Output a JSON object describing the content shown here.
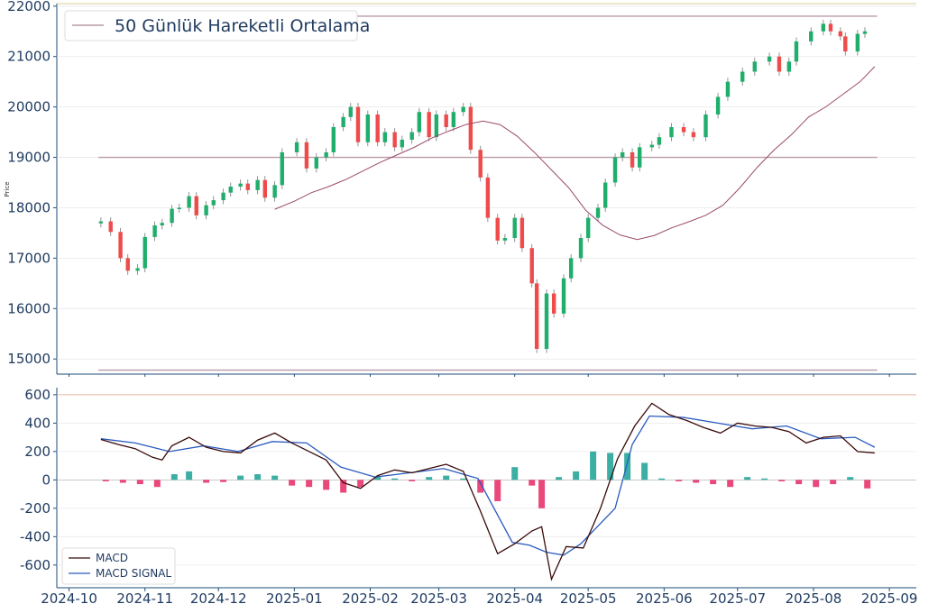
{
  "chart_data": [
    {
      "type": "candlestick",
      "ylabel": "Price",
      "ylim": [
        14700,
        22050
      ],
      "yticks": [
        15000,
        16000,
        17000,
        18000,
        19000,
        20000,
        21000,
        22000
      ],
      "legend": {
        "placement": "top-left",
        "entries": [
          "50 Günlük Hareketli Ortalama"
        ]
      },
      "horizontal_lines": [
        21800,
        19000,
        14780
      ],
      "up_color": "#26a69a",
      "candle_up_color": "#1fae6b",
      "candle_down_color": "#ef4b4b",
      "ma_color": "#9a4a6a",
      "ohlc_points": [
        [
          "2024-10-14",
          17730
        ],
        [
          "2024-10-18",
          17520
        ],
        [
          "2024-10-22",
          17000
        ],
        [
          "2024-10-25",
          16750
        ],
        [
          "2024-10-29",
          16800
        ],
        [
          "2024-11-01",
          17420
        ],
        [
          "2024-11-05",
          17650
        ],
        [
          "2024-11-08",
          17700
        ],
        [
          "2024-11-12",
          17980
        ],
        [
          "2024-11-15",
          18000
        ],
        [
          "2024-11-19",
          18230
        ],
        [
          "2024-11-22",
          17850
        ],
        [
          "2024-11-26",
          18050
        ],
        [
          "2024-11-29",
          18150
        ],
        [
          "2024-12-03",
          18300
        ],
        [
          "2024-12-06",
          18420
        ],
        [
          "2024-12-10",
          18480
        ],
        [
          "2024-12-13",
          18350
        ],
        [
          "2024-12-17",
          18550
        ],
        [
          "2024-12-20",
          18200
        ],
        [
          "2024-12-24",
          18450
        ],
        [
          "2024-12-27",
          19100
        ],
        [
          "2025-01-02",
          19300
        ],
        [
          "2025-01-06",
          18780
        ],
        [
          "2025-01-10",
          19000
        ],
        [
          "2025-01-14",
          19100
        ],
        [
          "2025-01-17",
          19600
        ],
        [
          "2025-01-21",
          19800
        ],
        [
          "2025-01-24",
          20000
        ],
        [
          "2025-01-27",
          19300
        ],
        [
          "2025-01-31",
          19850
        ],
        [
          "2025-02-04",
          19300
        ],
        [
          "2025-02-07",
          19500
        ],
        [
          "2025-02-11",
          19200
        ],
        [
          "2025-02-14",
          19350
        ],
        [
          "2025-02-18",
          19500
        ],
        [
          "2025-02-21",
          19900
        ],
        [
          "2025-02-25",
          19400
        ],
        [
          "2025-02-28",
          19850
        ],
        [
          "2025-03-04",
          19600
        ],
        [
          "2025-03-07",
          19900
        ],
        [
          "2025-03-11",
          20000
        ],
        [
          "2025-03-14",
          19150
        ],
        [
          "2025-03-18",
          18600
        ],
        [
          "2025-03-21",
          17800
        ],
        [
          "2025-03-25",
          17350
        ],
        [
          "2025-03-28",
          17400
        ],
        [
          "2025-04-01",
          17800
        ],
        [
          "2025-04-04",
          17200
        ],
        [
          "2025-04-08",
          16500
        ],
        [
          "2025-04-10",
          15200
        ],
        [
          "2025-04-14",
          16300
        ],
        [
          "2025-04-17",
          15900
        ],
        [
          "2025-04-21",
          16600
        ],
        [
          "2025-04-24",
          17000
        ],
        [
          "2025-04-28",
          17400
        ],
        [
          "2025-05-01",
          17800
        ],
        [
          "2025-05-05",
          18000
        ],
        [
          "2025-05-08",
          18500
        ],
        [
          "2025-05-12",
          19000
        ],
        [
          "2025-05-15",
          19100
        ],
        [
          "2025-05-19",
          18800
        ],
        [
          "2025-05-22",
          19200
        ],
        [
          "2025-05-27",
          19250
        ],
        [
          "2025-05-30",
          19400
        ],
        [
          "2025-06-04",
          19600
        ],
        [
          "2025-06-09",
          19500
        ],
        [
          "2025-06-13",
          19400
        ],
        [
          "2025-06-18",
          19850
        ],
        [
          "2025-06-23",
          20200
        ],
        [
          "2025-06-27",
          20500
        ],
        [
          "2025-07-03",
          20700
        ],
        [
          "2025-07-08",
          20900
        ],
        [
          "2025-07-14",
          21000
        ],
        [
          "2025-07-18",
          20700
        ],
        [
          "2025-07-22",
          20900
        ],
        [
          "2025-07-25",
          21300
        ],
        [
          "2025-07-31",
          21500
        ],
        [
          "2025-08-05",
          21650
        ],
        [
          "2025-08-08",
          21500
        ],
        [
          "2025-08-12",
          21400
        ],
        [
          "2025-08-14",
          21100
        ],
        [
          "2025-08-19",
          21450
        ],
        [
          "2025-08-22",
          21500
        ]
      ],
      "ma50": [
        [
          "2024-12-24",
          17970
        ],
        [
          "2025-01-01",
          18130
        ],
        [
          "2025-01-08",
          18300
        ],
        [
          "2025-01-15",
          18420
        ],
        [
          "2025-01-22",
          18560
        ],
        [
          "2025-01-29",
          18730
        ],
        [
          "2025-02-05",
          18900
        ],
        [
          "2025-02-12",
          19050
        ],
        [
          "2025-02-19",
          19200
        ],
        [
          "2025-02-26",
          19380
        ],
        [
          "2025-03-05",
          19520
        ],
        [
          "2025-03-12",
          19650
        ],
        [
          "2025-03-19",
          19720
        ],
        [
          "2025-03-26",
          19650
        ],
        [
          "2025-04-02",
          19420
        ],
        [
          "2025-04-09",
          19100
        ],
        [
          "2025-04-16",
          18750
        ],
        [
          "2025-04-23",
          18400
        ],
        [
          "2025-04-30",
          17950
        ],
        [
          "2025-05-07",
          17650
        ],
        [
          "2025-05-14",
          17460
        ],
        [
          "2025-05-21",
          17370
        ],
        [
          "2025-05-28",
          17450
        ],
        [
          "2025-06-04",
          17600
        ],
        [
          "2025-06-11",
          17720
        ],
        [
          "2025-06-18",
          17850
        ],
        [
          "2025-06-25",
          18050
        ],
        [
          "2025-07-02",
          18400
        ],
        [
          "2025-07-09",
          18800
        ],
        [
          "2025-07-16",
          19150
        ],
        [
          "2025-07-23",
          19450
        ],
        [
          "2025-07-30",
          19800
        ],
        [
          "2025-08-06",
          20000
        ],
        [
          "2025-08-13",
          20250
        ],
        [
          "2025-08-20",
          20500
        ],
        [
          "2025-08-26",
          20800
        ]
      ]
    },
    {
      "type": "line+bar",
      "ylim": [
        -760,
        650
      ],
      "yticks": [
        -600,
        -400,
        -200,
        0,
        200,
        400,
        600
      ],
      "top_reference_line": 600,
      "xticks": [
        "2024-10",
        "2024-11",
        "2024-12",
        "2025-01",
        "2025-02",
        "2025-03",
        "2025-04",
        "2025-05",
        "2025-06",
        "2025-07",
        "2025-08",
        "2025-09"
      ],
      "legend": {
        "placement": "bottom-left"
      },
      "series": [
        {
          "name": "MACD",
          "color": "#3a0a0a",
          "points": [
            [
              "2024-10-14",
              285
            ],
            [
              "2024-10-21",
              250
            ],
            [
              "2024-10-28",
              220
            ],
            [
              "2024-11-04",
              160
            ],
            [
              "2024-11-08",
              140
            ],
            [
              "2024-11-12",
              240
            ],
            [
              "2024-11-19",
              300
            ],
            [
              "2024-11-26",
              230
            ],
            [
              "2024-12-03",
              200
            ],
            [
              "2024-12-10",
              190
            ],
            [
              "2024-12-17",
              280
            ],
            [
              "2024-12-24",
              330
            ],
            [
              "2024-12-31",
              260
            ],
            [
              "2025-01-07",
              200
            ],
            [
              "2025-01-14",
              140
            ],
            [
              "2025-01-21",
              -20
            ],
            [
              "2025-01-28",
              -60
            ],
            [
              "2025-02-04",
              30
            ],
            [
              "2025-02-11",
              70
            ],
            [
              "2025-02-18",
              50
            ],
            [
              "2025-02-25",
              80
            ],
            [
              "2025-03-04",
              110
            ],
            [
              "2025-03-11",
              60
            ],
            [
              "2025-03-18",
              -220
            ],
            [
              "2025-03-25",
              -520
            ],
            [
              "2025-04-01",
              -450
            ],
            [
              "2025-04-08",
              -360
            ],
            [
              "2025-04-12",
              -330
            ],
            [
              "2025-04-16",
              -700
            ],
            [
              "2025-04-22",
              -470
            ],
            [
              "2025-04-29",
              -480
            ],
            [
              "2025-05-06",
              -200
            ],
            [
              "2025-05-13",
              150
            ],
            [
              "2025-05-20",
              380
            ],
            [
              "2025-05-27",
              540
            ],
            [
              "2025-06-03",
              460
            ],
            [
              "2025-06-10",
              420
            ],
            [
              "2025-06-17",
              370
            ],
            [
              "2025-06-24",
              330
            ],
            [
              "2025-07-01",
              400
            ],
            [
              "2025-07-08",
              380
            ],
            [
              "2025-07-15",
              370
            ],
            [
              "2025-07-22",
              340
            ],
            [
              "2025-07-29",
              260
            ],
            [
              "2025-08-05",
              300
            ],
            [
              "2025-08-12",
              310
            ],
            [
              "2025-08-19",
              200
            ],
            [
              "2025-08-26",
              190
            ]
          ]
        },
        {
          "name": "MACD SIGNAL",
          "color": "#2a5bbf",
          "points": [
            [
              "2024-10-14",
              290
            ],
            [
              "2024-10-28",
              260
            ],
            [
              "2024-11-11",
              200
            ],
            [
              "2024-11-25",
              240
            ],
            [
              "2024-12-09",
              200
            ],
            [
              "2024-12-23",
              270
            ],
            [
              "2025-01-06",
              260
            ],
            [
              "2025-01-20",
              90
            ],
            [
              "2025-02-03",
              20
            ],
            [
              "2025-02-17",
              50
            ],
            [
              "2025-03-03",
              80
            ],
            [
              "2025-03-17",
              10
            ],
            [
              "2025-03-31",
              -440
            ],
            [
              "2025-04-07",
              -460
            ],
            [
              "2025-04-14",
              -510
            ],
            [
              "2025-04-21",
              -530
            ],
            [
              "2025-04-28",
              -450
            ],
            [
              "2025-05-12",
              -200
            ],
            [
              "2025-05-19",
              250
            ],
            [
              "2025-05-26",
              450
            ],
            [
              "2025-06-09",
              440
            ],
            [
              "2025-06-23",
              400
            ],
            [
              "2025-07-07",
              360
            ],
            [
              "2025-07-21",
              380
            ],
            [
              "2025-08-04",
              290
            ],
            [
              "2025-08-18",
              300
            ],
            [
              "2025-08-26",
              230
            ]
          ]
        },
        {
          "name": "histogram",
          "pos_color": "#26a69a",
          "neg_color": "#e8336d",
          "points": [
            [
              "2024-10-16",
              -10
            ],
            [
              "2024-10-23",
              -20
            ],
            [
              "2024-10-30",
              -30
            ],
            [
              "2024-11-06",
              -50
            ],
            [
              "2024-11-13",
              40
            ],
            [
              "2024-11-19",
              60
            ],
            [
              "2024-11-26",
              -20
            ],
            [
              "2024-12-03",
              -15
            ],
            [
              "2024-12-10",
              30
            ],
            [
              "2024-12-17",
              40
            ],
            [
              "2024-12-24",
              30
            ],
            [
              "2024-12-31",
              -40
            ],
            [
              "2025-01-07",
              -50
            ],
            [
              "2025-01-14",
              -70
            ],
            [
              "2025-01-21",
              -90
            ],
            [
              "2025-01-28",
              -50
            ],
            [
              "2025-02-04",
              20
            ],
            [
              "2025-02-11",
              10
            ],
            [
              "2025-02-18",
              -10
            ],
            [
              "2025-02-25",
              20
            ],
            [
              "2025-03-04",
              30
            ],
            [
              "2025-03-11",
              10
            ],
            [
              "2025-03-18",
              -90
            ],
            [
              "2025-03-25",
              -150
            ],
            [
              "2025-04-01",
              90
            ],
            [
              "2025-04-08",
              -40
            ],
            [
              "2025-04-12",
              -200
            ],
            [
              "2025-04-19",
              20
            ],
            [
              "2025-04-26",
              60
            ],
            [
              "2025-05-03",
              200
            ],
            [
              "2025-05-10",
              190
            ],
            [
              "2025-05-17",
              190
            ],
            [
              "2025-05-24",
              120
            ],
            [
              "2025-05-31",
              10
            ],
            [
              "2025-06-07",
              -10
            ],
            [
              "2025-06-14",
              -20
            ],
            [
              "2025-06-21",
              -30
            ],
            [
              "2025-06-28",
              -50
            ],
            [
              "2025-07-05",
              20
            ],
            [
              "2025-07-12",
              10
            ],
            [
              "2025-07-19",
              -10
            ],
            [
              "2025-07-26",
              -30
            ],
            [
              "2025-08-02",
              -50
            ],
            [
              "2025-08-09",
              -30
            ],
            [
              "2025-08-16",
              20
            ],
            [
              "2025-08-23",
              -60
            ]
          ]
        }
      ]
    }
  ]
}
